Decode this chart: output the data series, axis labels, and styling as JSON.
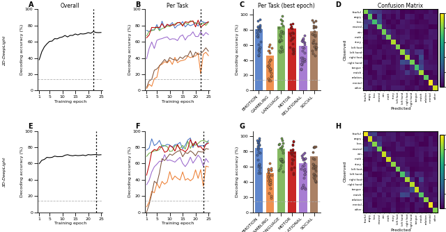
{
  "panel_labels": [
    "A",
    "B",
    "C",
    "D",
    "E",
    "F",
    "G",
    "H"
  ],
  "row_labels": [
    "2D-DeepLight",
    "3D-DeepLight"
  ],
  "epochs": [
    1,
    2,
    3,
    4,
    5,
    6,
    7,
    8,
    9,
    10,
    11,
    12,
    13,
    14,
    15,
    16,
    17,
    18,
    19,
    20,
    21,
    22,
    23,
    24,
    25
  ],
  "chance_level": 14.3,
  "best_epoch_2d": 22,
  "best_epoch_3d": 23,
  "overall_2d": [
    37,
    48,
    54,
    58,
    60,
    62,
    63,
    64,
    65,
    66,
    67,
    67,
    68,
    68,
    69,
    69,
    70,
    70,
    70,
    71,
    71,
    72,
    71,
    71,
    71
  ],
  "overall_3d": [
    60,
    64,
    66,
    67,
    68,
    68,
    69,
    69,
    69,
    69,
    70,
    70,
    70,
    70,
    70,
    70,
    70,
    70,
    70,
    71,
    71,
    71,
    71,
    71,
    71
  ],
  "per_task_2d": {
    "emotion": [
      70,
      74,
      76,
      77,
      79,
      80,
      81,
      79,
      80,
      81,
      80,
      82,
      81,
      82,
      82,
      81,
      82,
      82,
      81,
      82,
      82,
      83,
      82,
      82,
      82
    ],
    "gambling": [
      2,
      5,
      10,
      18,
      22,
      25,
      28,
      30,
      32,
      35,
      35,
      36,
      37,
      38,
      38,
      40,
      40,
      41,
      42,
      43,
      43,
      22,
      45,
      46,
      47
    ],
    "language": [
      68,
      72,
      74,
      76,
      78,
      78,
      79,
      80,
      80,
      80,
      81,
      81,
      82,
      82,
      82,
      82,
      82,
      82,
      83,
      83,
      83,
      83,
      83,
      83,
      83
    ],
    "motor": [
      65,
      72,
      75,
      78,
      79,
      80,
      80,
      80,
      80,
      81,
      81,
      81,
      82,
      82,
      82,
      82,
      82,
      82,
      82,
      82,
      82,
      82,
      82,
      82,
      82
    ],
    "relational": [
      40,
      50,
      55,
      57,
      60,
      62,
      62,
      63,
      64,
      65,
      64,
      65,
      65,
      65,
      66,
      65,
      66,
      67,
      67,
      67,
      67,
      68,
      68,
      68,
      68
    ],
    "social": [
      2,
      8,
      15,
      22,
      28,
      32,
      35,
      38,
      38,
      40,
      40,
      41,
      41,
      42,
      43,
      43,
      44,
      44,
      45,
      45,
      46,
      47,
      47,
      47,
      48
    ]
  },
  "per_task_3d": {
    "emotion": [
      75,
      80,
      82,
      83,
      84,
      83,
      84,
      84,
      83,
      84,
      84,
      84,
      85,
      84,
      84,
      85,
      85,
      85,
      85,
      84,
      85,
      85,
      85,
      85,
      85
    ],
    "gambling": [
      5,
      15,
      25,
      30,
      33,
      35,
      38,
      35,
      40,
      40,
      42,
      43,
      38,
      44,
      45,
      40,
      38,
      42,
      45,
      48,
      40,
      52,
      30,
      55,
      60
    ],
    "language": [
      68,
      74,
      76,
      77,
      78,
      78,
      79,
      80,
      80,
      80,
      81,
      81,
      82,
      82,
      82,
      82,
      82,
      82,
      83,
      83,
      83,
      83,
      83,
      83,
      83
    ],
    "motor": [
      45,
      65,
      72,
      75,
      77,
      80,
      80,
      80,
      78,
      80,
      80,
      80,
      80,
      80,
      80,
      78,
      80,
      80,
      80,
      80,
      80,
      80,
      80,
      80,
      80
    ],
    "relational": [
      35,
      45,
      55,
      58,
      60,
      62,
      63,
      64,
      64,
      63,
      64,
      64,
      65,
      64,
      64,
      64,
      64,
      65,
      64,
      64,
      65,
      64,
      64,
      65,
      64
    ],
    "social": [
      2,
      10,
      25,
      35,
      42,
      50,
      58,
      62,
      65,
      68,
      70,
      72,
      73,
      73,
      72,
      74,
      74,
      74,
      74,
      74,
      74,
      74,
      74,
      74,
      74
    ]
  },
  "task_colors": {
    "emotion": "#4472c4",
    "gambling": "#ed7d31",
    "language": "#70ad47",
    "motor": "#c00000",
    "relational": "#9966cc",
    "social": "#7b5139"
  },
  "bar_colors": {
    "EMOTION": "#4472c4",
    "GAMBLING": "#ed7d31",
    "LANGUAGE": "#70ad47",
    "MOTOR": "#c00000",
    "RELATIONAL": "#9966cc",
    "SOCIAL": "#9b6b4a"
  },
  "tasks_ordered": [
    "EMOTION",
    "GAMBLING",
    "LANGUAGE",
    "MOTOR",
    "RELATIONAL",
    "SOCIAL"
  ],
  "bar_heights_2d": [
    81,
    46,
    84,
    82,
    59,
    78
  ],
  "bar_heights_3d": [
    85,
    52,
    84,
    80,
    65,
    74
  ],
  "confusion_labels": [
    "fearful",
    "angry",
    "loss",
    "neutral",
    "win",
    "math",
    "story",
    "left foot",
    "left hand",
    "right foot",
    "right hand",
    "tongue",
    "match",
    "relation",
    "mental",
    "other"
  ],
  "confusion_block_sizes": [
    4,
    2,
    5,
    4,
    1
  ],
  "colormap": "viridis",
  "ylim_line": [
    0,
    100
  ],
  "xlim_line": [
    0.5,
    25.5
  ],
  "xticks_line": [
    1,
    5,
    10,
    15,
    20,
    25
  ],
  "background_color": "#ffffff"
}
